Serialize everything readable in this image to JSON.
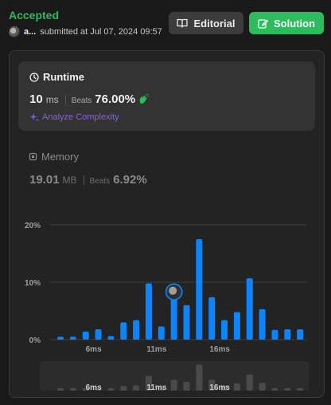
{
  "header": {
    "status": "Accepted",
    "username": "a...",
    "submitted_text": "submitted at Jul 07, 2024 09:57",
    "editorial_label": "Editorial",
    "solution_label": "Solution"
  },
  "runtime": {
    "title": "Runtime",
    "value": "10",
    "unit": "ms",
    "beats_label": "Beats",
    "beats_value": "76.00%",
    "analyze_label": "Analyze Complexity"
  },
  "memory": {
    "title": "Memory",
    "value": "19.01",
    "unit": "MB",
    "beats_label": "Beats",
    "beats_value": "6.92%"
  },
  "colors": {
    "accent_green": "#2cbb5d",
    "bar_blue": "#0a84ff",
    "analyze_purple": "#8661d8"
  },
  "chart_data": {
    "type": "bar",
    "y_ticks": [
      "20%",
      "10%",
      "0%"
    ],
    "x_ticks": [
      "6ms",
      "11ms",
      "16ms"
    ],
    "ylim": [
      0,
      22
    ],
    "x": [
      1,
      2,
      3,
      4,
      5,
      6,
      7,
      8,
      9,
      10,
      11,
      12,
      13,
      14,
      15,
      16,
      17,
      18,
      19,
      20
    ],
    "values": [
      0.5,
      0.5,
      1.4,
      1.8,
      0.6,
      3.0,
      3.4,
      9.8,
      2.3,
      7.2,
      6.0,
      17.5,
      7.4,
      3.4,
      4.8,
      10.7,
      5.3,
      1.7,
      1.8,
      1.8
    ],
    "current_x": 10,
    "mini_values": [
      0.5,
      0.5,
      0.5,
      0.5,
      0.5,
      0.9,
      1.0,
      2.8,
      0.7,
      2.1,
      1.7,
      5.0,
      2.1,
      1.0,
      1.4,
      3.1,
      1.5,
      0.5,
      0.5,
      0.5
    ]
  }
}
